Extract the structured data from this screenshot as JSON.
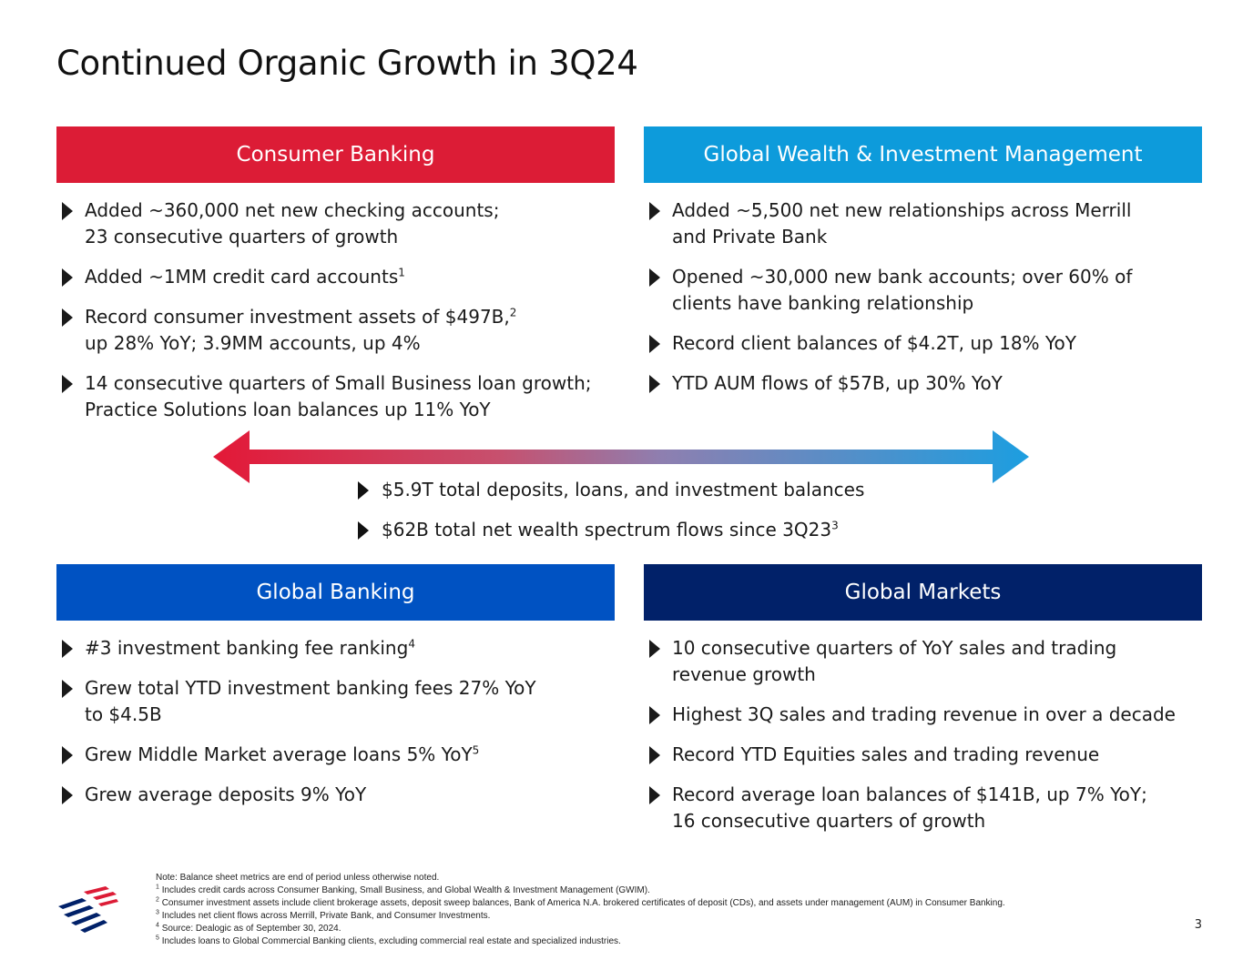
{
  "title": "Continued Organic Growth in 3Q24",
  "colors": {
    "consumer": "#dc1c36",
    "gwim": "#0d9bdb",
    "global_banking": "#0052c2",
    "global_markets": "#012169",
    "bullet_red": "#dc1c36",
    "bullet_blue": "#0d9bdb",
    "bullet_gb": "#0052c2",
    "bullet_gm": "#012169"
  },
  "consumer": {
    "header": "Consumer Banking",
    "bullets": [
      {
        "l1": "Added ~360,000 net new checking accounts;",
        "l2": "23 consecutive quarters of growth"
      },
      {
        "l1": "Added ~1MM credit card accounts",
        "sup": "1"
      },
      {
        "l1": "Record consumer investment assets of $497B,",
        "sup": "2",
        "l2": "up 28% YoY; 3.9MM accounts, up 4%"
      },
      {
        "l1": "14 consecutive quarters of Small Business loan growth;",
        "l2": "Practice Solutions loan balances up 11% YoY"
      }
    ]
  },
  "gwim": {
    "header": "Global Wealth & Investment Management",
    "bullets": [
      {
        "l1": "Added ~5,500 net new relationships across Merrill",
        "l2": "and Private Bank"
      },
      {
        "l1": "Opened ~30,000 new bank accounts; over 60% of",
        "l2": "clients have banking relationship"
      },
      {
        "l1": "Record client balances of $4.2T, up 18% YoY"
      },
      {
        "l1": "YTD AUM flows of $57B, up 30% YoY"
      }
    ]
  },
  "center": {
    "bullets": [
      {
        "text": "$5.9T total deposits, loans, and investment balances"
      },
      {
        "text": "$62B total net wealth spectrum flows since 3Q23",
        "sup": "3"
      }
    ]
  },
  "global_banking": {
    "header": "Global Banking",
    "bullets": [
      {
        "l1": "#3 investment banking fee ranking",
        "sup": "4"
      },
      {
        "l1": "Grew total YTD investment banking fees 27% YoY",
        "l2": "to $4.5B"
      },
      {
        "l1": "Grew Middle Market average loans 5% YoY",
        "sup": "5"
      },
      {
        "l1": "Grew average deposits 9% YoY"
      }
    ]
  },
  "global_markets": {
    "header": "Global Markets",
    "bullets": [
      {
        "l1": "10 consecutive quarters of YoY sales and trading",
        "l2": "revenue growth"
      },
      {
        "l1": "Highest 3Q sales and trading revenue in over a decade"
      },
      {
        "l1": "Record YTD Equities sales and trading revenue"
      },
      {
        "l1": "Record average loan balances of $141B, up 7% YoY;",
        "l2": "16 consecutive quarters of growth"
      }
    ]
  },
  "footnotes": {
    "note": "Note: Balance sheet metrics are end of period unless otherwise noted.",
    "items": [
      {
        "n": "1",
        "text": "Includes credit cards across Consumer Banking, Small Business, and Global Wealth & Investment Management (GWIM)."
      },
      {
        "n": "2",
        "text": "Consumer investment assets include client brokerage assets, deposit sweep balances, Bank of America N.A. brokered certificates of deposit (CDs), and assets under management (AUM) in Consumer Banking."
      },
      {
        "n": "3",
        "text": "Includes net client flows across Merrill, Private Bank, and Consumer Investments."
      },
      {
        "n": "4",
        "text": "Source: Dealogic as of September 30, 2024."
      },
      {
        "n": "5",
        "text": "Includes loans to Global Commercial Banking clients, excluding commercial real estate and specialized industries."
      }
    ]
  },
  "page_number": "3",
  "logo": {
    "icon": "bank-flag-logo-icon"
  }
}
